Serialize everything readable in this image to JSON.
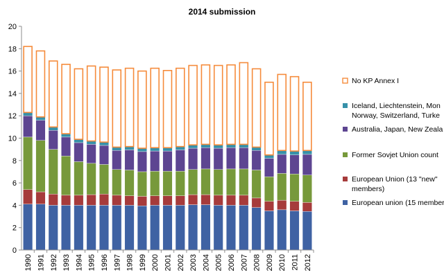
{
  "chart_data": {
    "type": "bar",
    "stacked": true,
    "title": "2014 submission",
    "xlabel": "",
    "ylabel": "",
    "ylim": [
      0,
      20
    ],
    "yticks": [
      0,
      2,
      4,
      6,
      8,
      10,
      12,
      14,
      16,
      18,
      20
    ],
    "grid": false,
    "legend_position": "right",
    "categories": [
      "1990",
      "1991",
      "1992",
      "1993",
      "1994",
      "1995",
      "1996",
      "1997",
      "1998",
      "1999",
      "2000",
      "2001",
      "2002",
      "2003",
      "2004",
      "2005",
      "2006",
      "2007",
      "2008",
      "2009",
      "2010",
      "2011",
      "2012"
    ],
    "series": [
      {
        "name": "European union (15 member",
        "color": "#3f62a3",
        "values": [
          4.1,
          4.1,
          4.0,
          4.0,
          4.0,
          4.0,
          4.0,
          4.0,
          4.0,
          3.95,
          4.0,
          4.0,
          4.0,
          4.05,
          4.05,
          4.0,
          4.0,
          4.0,
          3.8,
          3.5,
          3.6,
          3.5,
          3.45
        ]
      },
      {
        "name": "European Union (13 \"new\" members)",
        "color": "#a63b3b",
        "values": [
          1.3,
          1.1,
          1.0,
          0.9,
          0.9,
          0.95,
          1.0,
          0.9,
          0.85,
          0.85,
          0.85,
          0.85,
          0.85,
          0.9,
          0.9,
          0.9,
          0.9,
          0.9,
          0.85,
          0.85,
          0.85,
          0.85,
          0.8
        ]
      },
      {
        "name": "Former Sovjet Union count",
        "color": "#77993b",
        "values": [
          4.7,
          4.6,
          4.0,
          3.5,
          3.0,
          2.8,
          2.65,
          2.3,
          2.3,
          2.2,
          2.2,
          2.2,
          2.2,
          2.25,
          2.3,
          2.3,
          2.35,
          2.35,
          2.5,
          2.2,
          2.4,
          2.45,
          2.45
        ]
      },
      {
        "name": "Australia, Japan, New Zeala",
        "color": "#5d4591",
        "values": [
          1.9,
          1.8,
          1.7,
          1.7,
          1.7,
          1.7,
          1.7,
          1.7,
          1.8,
          1.8,
          1.8,
          1.8,
          1.9,
          1.9,
          1.9,
          1.9,
          1.9,
          1.9,
          1.75,
          1.65,
          1.7,
          1.7,
          1.85
        ]
      },
      {
        "name": "Iceland, Liechtenstein, Mon Norway, Switzerland, Turke",
        "color": "#3791a9",
        "values": [
          0.3,
          0.3,
          0.3,
          0.3,
          0.3,
          0.3,
          0.3,
          0.3,
          0.3,
          0.3,
          0.3,
          0.3,
          0.3,
          0.3,
          0.3,
          0.3,
          0.3,
          0.3,
          0.3,
          0.3,
          0.35,
          0.35,
          0.35
        ]
      },
      {
        "name": "No KP Annex I",
        "color": "#f58b3b",
        "outline": true,
        "values": [
          5.9,
          5.9,
          5.9,
          6.2,
          6.3,
          6.7,
          6.7,
          6.9,
          7.0,
          6.9,
          7.1,
          6.9,
          7.0,
          7.1,
          7.1,
          7.1,
          7.1,
          7.3,
          7.0,
          6.5,
          6.8,
          6.65,
          6.1
        ]
      }
    ]
  }
}
